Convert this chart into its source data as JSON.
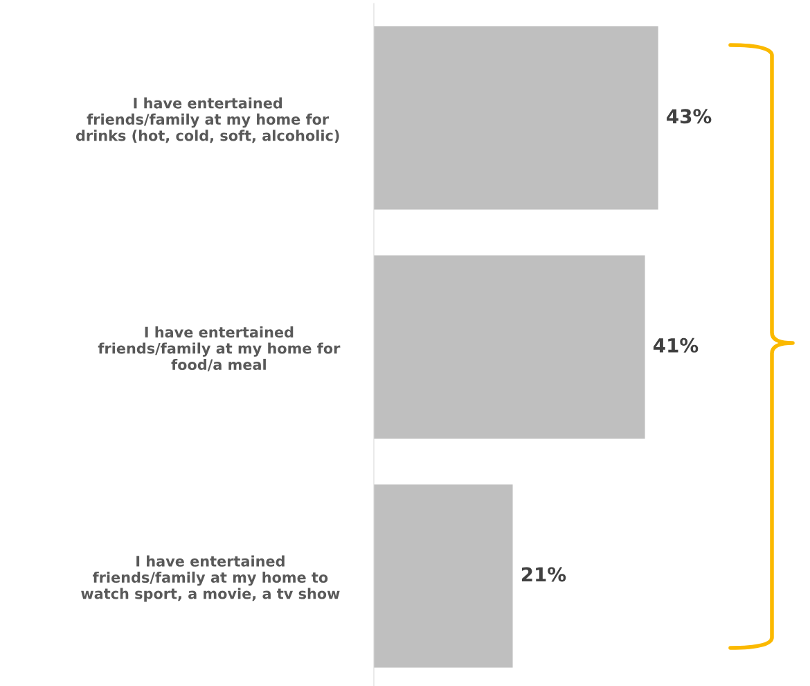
{
  "chart_data": {
    "type": "bar",
    "orientation": "horizontal",
    "relative": false,
    "data_labels": true,
    "categories": [
      "I have entertained\nfriends/family at my home for\ndrinks (hot, cold, soft, alcoholic)",
      "I have entertained\nfriends/family at my home for\nfood/a meal",
      "I have entertained\nfriends/family at my home to\nwatch sport, a movie, a tv show"
    ],
    "values": [
      43,
      41,
      21
    ],
    "value_labels": [
      "43%",
      "41%",
      "21%"
    ],
    "color": "#bfbfbf",
    "grid": false,
    "legend": false
  }
}
